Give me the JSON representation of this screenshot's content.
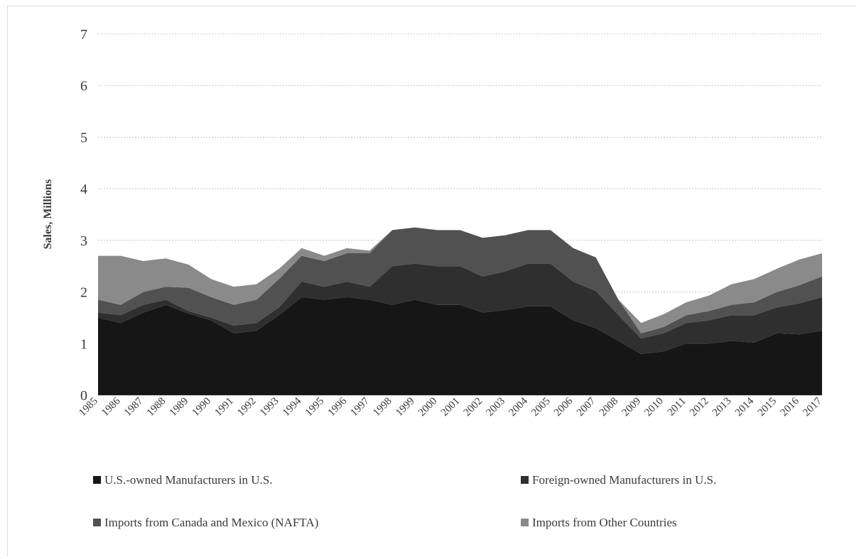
{
  "chart_data": {
    "type": "area",
    "stacked": true,
    "title": "",
    "xlabel": "",
    "ylabel": "Sales, Millions",
    "ylim": [
      0,
      7
    ],
    "yticks": [
      "0",
      "1",
      "2",
      "3",
      "4",
      "5",
      "6",
      "7"
    ],
    "grid": true,
    "legend_position": "bottom",
    "x": [
      "1985",
      "1986",
      "1987",
      "1988",
      "1989",
      "1990",
      "1991",
      "1992",
      "1993",
      "1994",
      "1995",
      "1996",
      "1997",
      "1998",
      "1999",
      "2000",
      "2001",
      "2002",
      "2003",
      "2004",
      "2005",
      "2006",
      "2007",
      "2008",
      "2009",
      "2010",
      "2011",
      "2012",
      "2013",
      "2014",
      "2015",
      "2016",
      "2017"
    ],
    "series": [
      {
        "name": "U.S.-owned Manufacturers in U.S.",
        "color": "#161616",
        "values": [
          1.5,
          1.4,
          1.6,
          1.75,
          1.58,
          1.45,
          1.2,
          1.25,
          1.55,
          1.9,
          1.85,
          1.9,
          1.85,
          1.75,
          1.85,
          1.75,
          1.75,
          1.6,
          1.65,
          1.72,
          1.72,
          1.45,
          1.3,
          1.05,
          0.8,
          0.85,
          1.0,
          1.0,
          1.05,
          1.02,
          1.2,
          1.18,
          1.25
        ]
      },
      {
        "name": "Foreign-owned Manufacturers in U.S.",
        "color": "#2f2f2f",
        "values": [
          0.1,
          0.15,
          0.15,
          0.1,
          0.05,
          0.05,
          0.15,
          0.15,
          0.15,
          0.3,
          0.25,
          0.3,
          0.25,
          0.75,
          0.7,
          0.75,
          0.75,
          0.7,
          0.75,
          0.83,
          0.83,
          0.75,
          0.72,
          0.5,
          0.3,
          0.35,
          0.4,
          0.45,
          0.5,
          0.53,
          0.5,
          0.6,
          0.65
        ]
      },
      {
        "name": "Imports from Canada and Mexico (NAFTA)",
        "color": "#515151",
        "values": [
          0.25,
          0.2,
          0.25,
          0.25,
          0.45,
          0.4,
          0.4,
          0.45,
          0.55,
          0.5,
          0.5,
          0.55,
          0.65,
          0.7,
          0.7,
          0.7,
          0.7,
          0.75,
          0.7,
          0.65,
          0.65,
          0.65,
          0.65,
          0.3,
          0.1,
          0.12,
          0.15,
          0.18,
          0.2,
          0.25,
          0.3,
          0.35,
          0.4
        ]
      },
      {
        "name": "Imports from Other Countries",
        "color": "#8a8a8a",
        "values": [
          0.85,
          0.95,
          0.6,
          0.55,
          0.45,
          0.35,
          0.35,
          0.3,
          0.2,
          0.15,
          0.1,
          0.1,
          0.05,
          0.0,
          0.0,
          0.0,
          0.0,
          0.0,
          0.0,
          0.0,
          0.0,
          0.0,
          0.0,
          0.0,
          0.2,
          0.25,
          0.25,
          0.3,
          0.4,
          0.45,
          0.45,
          0.5,
          0.45
        ]
      }
    ]
  }
}
